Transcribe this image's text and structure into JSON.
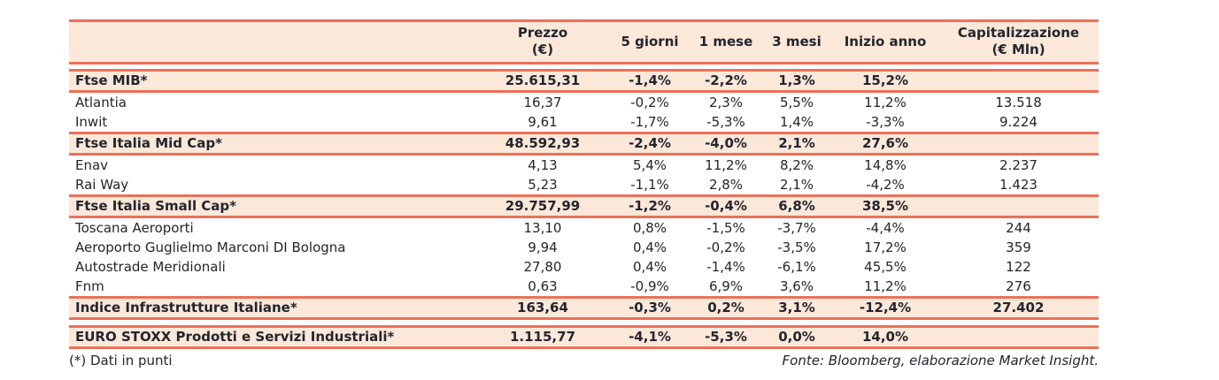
{
  "colors": {
    "line": "#ec7058",
    "row_fill": "#fbe8d9",
    "text": "#23252f"
  },
  "table": {
    "column_headers": [
      "",
      "Prezzo\n(€)",
      "5 giorni",
      "1 mese",
      "3 mesi",
      "Inizio anno",
      "Capitalizzazione\n(€ Mln)"
    ],
    "rows": [
      {
        "type": "index",
        "name": "Ftse MIB*",
        "values": [
          "25.615,31",
          "-1,4%",
          "-2,2%",
          "1,3%",
          "15,2%",
          ""
        ]
      },
      {
        "type": "stock",
        "name": "Atlantia",
        "values": [
          "16,37",
          "-0,2%",
          "2,3%",
          "5,5%",
          "11,2%",
          "13.518"
        ]
      },
      {
        "type": "stock",
        "name": "Inwit",
        "values": [
          "9,61",
          "-1,7%",
          "-5,3%",
          "1,4%",
          "-3,3%",
          "9.224"
        ]
      },
      {
        "type": "index",
        "name": "Ftse Italia Mid Cap*",
        "values": [
          "48.592,93",
          "-2,4%",
          "-4,0%",
          "2,1%",
          "27,6%",
          ""
        ]
      },
      {
        "type": "stock",
        "name": "Enav",
        "values": [
          "4,13",
          "5,4%",
          "11,2%",
          "8,2%",
          "14,8%",
          "2.237"
        ]
      },
      {
        "type": "stock",
        "name": "Rai Way",
        "values": [
          "5,23",
          "-1,1%",
          "2,8%",
          "2,1%",
          "-4,2%",
          "1.423"
        ]
      },
      {
        "type": "index",
        "name": "Ftse Italia Small Cap*",
        "values": [
          "29.757,99",
          "-1,2%",
          "-0,4%",
          "6,8%",
          "38,5%",
          ""
        ]
      },
      {
        "type": "stock",
        "name": "Toscana Aeroporti",
        "values": [
          "13,10",
          "0,8%",
          "-1,5%",
          "-3,7%",
          "-4,4%",
          "244"
        ]
      },
      {
        "type": "stock",
        "name": "Aeroporto Guglielmo Marconi DI Bologna",
        "values": [
          "9,94",
          "0,4%",
          "-0,2%",
          "-3,5%",
          "17,2%",
          "359"
        ]
      },
      {
        "type": "stock",
        "name": "Autostrade Meridionali",
        "values": [
          "27,80",
          "0,4%",
          "-1,4%",
          "-6,1%",
          "45,5%",
          "122"
        ]
      },
      {
        "type": "stock",
        "name": "Fnm",
        "values": [
          "0,63",
          "-0,9%",
          "6,9%",
          "3,6%",
          "11,2%",
          "276"
        ]
      },
      {
        "type": "index",
        "name": "Indice Infrastrutture Italiane*",
        "values": [
          "163,64",
          "-0,3%",
          "0,2%",
          "3,1%",
          "-12,4%",
          "27.402"
        ]
      },
      {
        "type": "gap"
      },
      {
        "type": "index",
        "name": "EURO STOXX Prodotti e Servizi Industriali*",
        "values": [
          "1.115,77",
          "-4,1%",
          "-5,3%",
          "0,0%",
          "14,0%",
          ""
        ]
      }
    ]
  },
  "footer": {
    "note": "(*) Dati in punti",
    "source": "Fonte: Bloomberg, elaborazione Market Insight."
  }
}
